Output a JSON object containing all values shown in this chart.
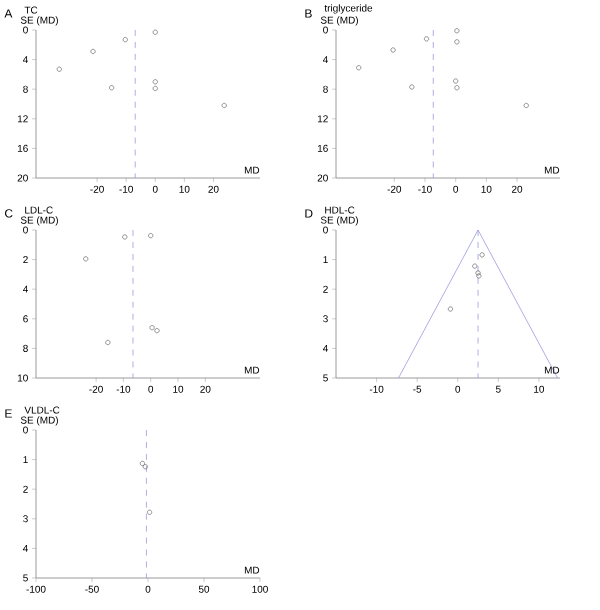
{
  "chart_data": [
    {
      "type": "scatter",
      "title": "TC",
      "annotations": [
        "A"
      ],
      "xlabel": "MD",
      "ylabel": "SE (MD)",
      "marker": "circle",
      "xlim": [
        -41,
        36
      ],
      "ylim": [
        20,
        0
      ],
      "xticks": [
        -20,
        -10,
        0,
        10,
        20
      ],
      "yticks": [
        0,
        4,
        8,
        12,
        16,
        20
      ],
      "series": [
        {
          "color": "#666666",
          "x": [
            -33,
            -21.4,
            -10.3,
            -15,
            0,
            0,
            0,
            23.7
          ],
          "values": [
            5.3,
            2.9,
            1.3,
            7.8,
            0.3,
            7,
            7.9,
            10.2
          ]
        }
      ],
      "ref_lines": [
        {
          "axis": "x",
          "value": -6.9,
          "color": "#9999dd",
          "line_style": "dashed"
        }
      ]
    },
    {
      "type": "scatter",
      "title": "triglyceride",
      "annotations": [
        "B"
      ],
      "xlabel": "MD",
      "ylabel": "SE (MD)",
      "marker": "circle",
      "xlim": [
        -39,
        34
      ],
      "ylim": [
        20,
        0
      ],
      "xticks": [
        -20,
        -10,
        0,
        10,
        20
      ],
      "yticks": [
        0,
        4,
        8,
        12,
        16,
        20
      ],
      "series": [
        {
          "color": "#666666",
          "x": [
            -31.6,
            -20.4,
            -9.5,
            -14.3,
            0.4,
            0.4,
            0,
            0.4,
            23
          ],
          "values": [
            5.1,
            2.7,
            1.2,
            7.7,
            0.1,
            1.6,
            6.9,
            7.8,
            10.2
          ]
        }
      ],
      "ref_lines": [
        {
          "axis": "x",
          "value": -7.3,
          "color": "#9999dd",
          "line_style": "dashed"
        }
      ]
    },
    {
      "type": "scatter",
      "title": "LDL-C",
      "annotations": [
        "C"
      ],
      "xlabel": "MD",
      "ylabel": "SE (MD)",
      "marker": "circle",
      "xlim": [
        -42,
        40
      ],
      "ylim": [
        10,
        0
      ],
      "xticks": [
        -20,
        -10,
        0,
        10,
        20
      ],
      "yticks": [
        0,
        2,
        4,
        6,
        8,
        10
      ],
      "series": [
        {
          "color": "#666666",
          "x": [
            -9.5,
            0,
            -23.8,
            -15.7,
            0.5,
            2.3
          ],
          "values": [
            0.47,
            0.38,
            1.95,
            7.6,
            6.6,
            6.8
          ]
        }
      ],
      "ref_lines": [
        {
          "axis": "x",
          "value": -6.5,
          "color": "#9999dd",
          "line_style": "dashed"
        }
      ]
    },
    {
      "type": "scatter",
      "title": "HDL-C",
      "annotations": [
        "D"
      ],
      "xlabel": "MD",
      "ylabel": "SE (MD)",
      "marker": "circle",
      "xlim": [
        -15,
        12.6
      ],
      "ylim": [
        5,
        0
      ],
      "xticks": [
        -10,
        -5,
        0,
        5,
        10
      ],
      "yticks": [
        0,
        1,
        2,
        3,
        4,
        5
      ],
      "series": [
        {
          "color": "#666666",
          "x": [
            3,
            2.1,
            2.5,
            2.6,
            -0.9
          ],
          "values": [
            0.84,
            1.22,
            1.45,
            1.55,
            2.67
          ]
        },
        {
          "type": "line",
          "marker": "none",
          "color": "#9999dd",
          "x": [
            -7.3,
            2.5,
            12.3
          ],
          "values": [
            5,
            0,
            5
          ]
        }
      ],
      "ref_lines": [
        {
          "axis": "x",
          "value": 2.5,
          "color": "#9999dd",
          "line_style": "dashed"
        }
      ]
    },
    {
      "type": "scatter",
      "title": "VLDL-C",
      "annotations": [
        "E"
      ],
      "xlabel": "MD",
      "ylabel": "SE (MD)",
      "marker": "circle",
      "xlim": [
        -100,
        100
      ],
      "ylim": [
        5,
        0
      ],
      "xticks": [
        -100,
        -50,
        0,
        50,
        100
      ],
      "yticks": [
        0,
        1,
        2,
        3,
        4,
        5
      ],
      "series": [
        {
          "color": "#666666",
          "x": [
            -5,
            -2.4,
            1.4
          ],
          "values": [
            1.13,
            1.24,
            2.78
          ]
        }
      ],
      "ref_lines": [
        {
          "axis": "x",
          "value": -1.4,
          "color": "#9999dd",
          "line_style": "dashed"
        }
      ]
    }
  ]
}
